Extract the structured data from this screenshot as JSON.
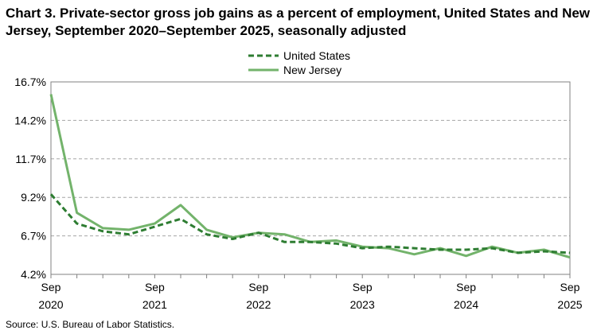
{
  "chart_data": {
    "type": "line",
    "title": "Chart 3. Private-sector gross job gains as a percent of employment, United States and New Jersey, September 2020–September 2025, seasonally adjusted",
    "source": "Source: U.S. Bureau of Labor Statistics.",
    "y_ticks": [
      "16.7%",
      "14.2%",
      "11.7%",
      "9.2%",
      "6.7%",
      "4.2%"
    ],
    "y_tick_values": [
      16.7,
      14.2,
      11.7,
      9.2,
      6.7,
      4.2
    ],
    "ylim": [
      4.2,
      16.7
    ],
    "x_ticks": [
      {
        "month": "Sep",
        "year": "2020",
        "index": 0
      },
      {
        "month": "Sep",
        "year": "2021",
        "index": 4
      },
      {
        "month": "Sep",
        "year": "2022",
        "index": 8
      },
      {
        "month": "Sep",
        "year": "2023",
        "index": 12
      },
      {
        "month": "Sep",
        "year": "2024",
        "index": 16
      },
      {
        "month": "Sep",
        "year": "2025",
        "index": 20
      }
    ],
    "grid": true,
    "legend_position": "top-center",
    "x": [
      "Sep 2020",
      "Dec 2020",
      "Mar 2021",
      "Jun 2021",
      "Sep 2021",
      "Dec 2021",
      "Mar 2022",
      "Jun 2022",
      "Sep 2022",
      "Dec 2022",
      "Mar 2023",
      "Jun 2023",
      "Sep 2023",
      "Dec 2023",
      "Mar 2024",
      "Jun 2024",
      "Sep 2024",
      "Dec 2024",
      "Mar 2025",
      "Jun 2025",
      "Sep 2025"
    ],
    "series": [
      {
        "name": "United States",
        "color": "#2e7d32",
        "style": "dashed",
        "values": [
          9.4,
          7.5,
          7.0,
          6.8,
          7.3,
          7.8,
          6.8,
          6.5,
          6.9,
          6.3,
          6.3,
          6.2,
          5.9,
          6.0,
          5.9,
          5.8,
          5.8,
          5.9,
          5.6,
          5.7,
          5.6
        ]
      },
      {
        "name": "New Jersey",
        "color": "#73b36b",
        "style": "solid",
        "values": [
          15.9,
          8.2,
          7.2,
          7.1,
          7.5,
          8.7,
          7.1,
          6.6,
          6.9,
          6.8,
          6.3,
          6.4,
          6.0,
          5.9,
          5.5,
          5.9,
          5.4,
          6.0,
          5.6,
          5.8,
          5.3
        ]
      }
    ]
  }
}
